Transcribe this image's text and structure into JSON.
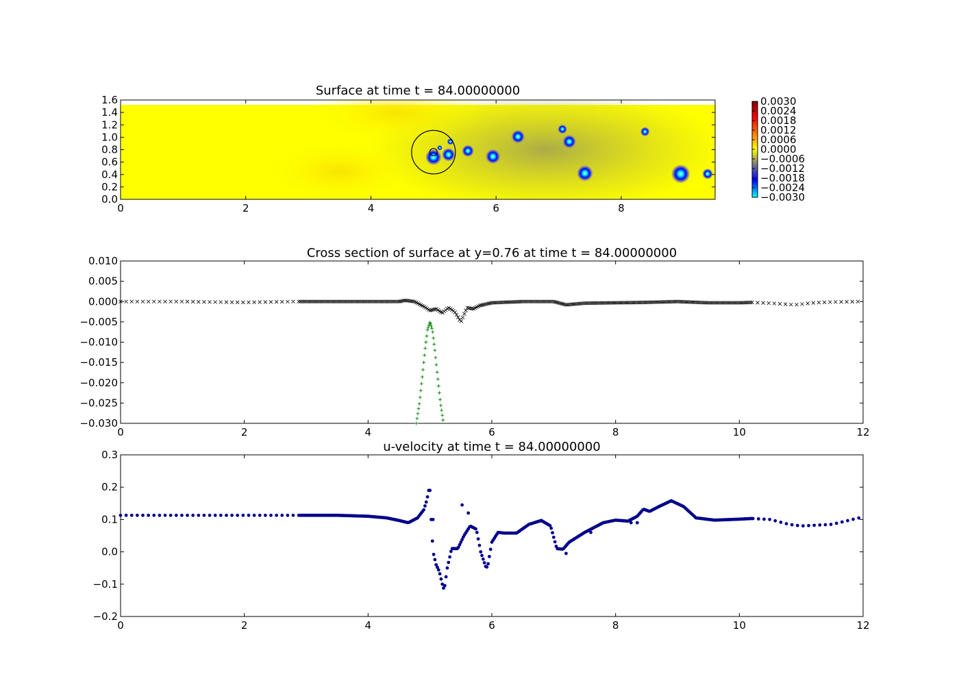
{
  "colors": {
    "surface_bg": "#ffff00",
    "cross_section_markers": "#000000",
    "bathymetry_markers": "#008000",
    "velocity_markers": "#00008b",
    "colormap": [
      "#00ffff",
      "#0000ff",
      "#808080",
      "#ffff00",
      "#ff8000",
      "#ff0000",
      "#800000"
    ]
  },
  "chart_data": [
    {
      "type": "heatmap",
      "title": "Surface at time t =    84.00000000",
      "xlabel": "",
      "ylabel": "",
      "xlim": [
        0,
        9.5
      ],
      "ylim": [
        0,
        1.6
      ],
      "x_ticks": [
        "0",
        "2",
        "4",
        "6",
        "8"
      ],
      "y_ticks": [
        "0.0",
        "0.2",
        "0.4",
        "0.6",
        "0.8",
        "1.0",
        "1.2",
        "1.4",
        "1.6"
      ],
      "colorbar": {
        "range": [
          -0.003,
          0.003
        ],
        "ticks": [
          "0.0030",
          "0.0024",
          "0.0018",
          "0.0012",
          "0.0006",
          "0.0000",
          "−0.0006",
          "−0.0012",
          "−0.0018",
          "−0.0024",
          "−0.0030"
        ]
      },
      "depressions": [
        {
          "x": 5.0,
          "y": 0.68,
          "r": 0.12
        },
        {
          "x": 5.24,
          "y": 0.72,
          "r": 0.1
        },
        {
          "x": 5.55,
          "y": 0.78,
          "r": 0.09
        },
        {
          "x": 5.95,
          "y": 0.69,
          "r": 0.11
        },
        {
          "x": 6.35,
          "y": 1.01,
          "r": 0.1
        },
        {
          "x": 7.06,
          "y": 1.13,
          "r": 0.07
        },
        {
          "x": 7.17,
          "y": 0.93,
          "r": 0.1
        },
        {
          "x": 7.42,
          "y": 0.42,
          "r": 0.12
        },
        {
          "x": 8.38,
          "y": 1.09,
          "r": 0.07
        },
        {
          "x": 8.95,
          "y": 0.41,
          "r": 0.14
        },
        {
          "x": 9.38,
          "y": 0.41,
          "r": 0.08
        },
        {
          "x": 5.27,
          "y": 0.93,
          "r": 0.05
        },
        {
          "x": 5.1,
          "y": 0.83,
          "r": 0.04
        }
      ],
      "circle": {
        "x": 5.0,
        "y": 0.76,
        "r": 0.35
      },
      "small_circle": {
        "x": 5.0,
        "y": 0.76,
        "r": 0.06
      }
    },
    {
      "type": "scatter",
      "title": "Cross section of surface at y=0.76 at time t =    84.00000000",
      "xlabel": "",
      "ylabel": "",
      "xlim": [
        0,
        12
      ],
      "ylim": [
        -0.03,
        0.01
      ],
      "x_ticks": [
        "0",
        "2",
        "4",
        "6",
        "8",
        "10",
        "12"
      ],
      "y_ticks": [
        "0.010",
        "0.005",
        "0.000",
        "−0.005",
        "−0.010",
        "−0.015",
        "−0.020",
        "−0.025",
        "−0.030"
      ],
      "series": [
        {
          "marker": "x",
          "x": [
            0.0,
            1.0,
            2.0,
            2.8,
            3.5,
            4.0,
            4.5,
            4.6,
            4.75,
            4.9,
            5.0,
            5.1,
            5.2,
            5.3,
            5.4,
            5.5,
            5.55,
            5.6,
            5.7,
            5.8,
            6.0,
            6.5,
            7.0,
            7.2,
            7.5,
            8.0,
            8.5,
            9.0,
            9.5,
            10.0,
            10.2,
            10.5,
            10.9,
            11.2,
            11.5,
            12.0
          ],
          "y": [
            0.0,
            0.0,
            -0.0002,
            0.0,
            0.0,
            0.0,
            0.0,
            0.0003,
            0.0,
            -0.0012,
            -0.0022,
            -0.0018,
            -0.0028,
            -0.0015,
            -0.0025,
            -0.005,
            -0.0032,
            -0.0015,
            -0.0018,
            -0.001,
            -0.0003,
            0.0,
            0.0,
            -0.0008,
            -0.0004,
            -0.0003,
            -0.0002,
            0.0,
            -0.0003,
            -0.0003,
            -0.0002,
            -0.0004,
            -0.0008,
            -0.0003,
            -0.0001,
            0.0
          ]
        },
        {
          "marker": "+",
          "x": [
            4.78,
            4.83,
            4.88,
            4.92,
            4.96,
            5.0,
            5.04,
            5.08,
            5.12,
            5.17,
            5.22
          ],
          "y": [
            -0.03,
            -0.025,
            -0.018,
            -0.012,
            -0.007,
            -0.005,
            -0.007,
            -0.012,
            -0.018,
            -0.025,
            -0.03
          ]
        }
      ]
    },
    {
      "type": "scatter",
      "title": "u-velocity at time t =    84.00000000",
      "xlabel": "",
      "ylabel": "",
      "xlim": [
        0,
        12
      ],
      "ylim": [
        -0.2,
        0.3
      ],
      "x_ticks": [
        "0",
        "2",
        "4",
        "6",
        "8",
        "10",
        "12"
      ],
      "y_ticks": [
        "0.3",
        "0.2",
        "0.1",
        "0.0",
        "−0.1",
        "−0.2"
      ],
      "series": [
        {
          "marker": "o",
          "x": [
            0.0,
            1.0,
            2.0,
            2.8,
            3.5,
            4.0,
            4.3,
            4.5,
            4.65,
            4.8,
            4.9,
            4.95,
            4.98,
            5.0,
            5.02,
            5.05,
            5.1,
            5.15,
            5.2,
            5.23,
            5.28,
            5.35,
            5.45,
            5.55,
            5.65,
            5.75,
            5.82,
            5.9,
            5.93,
            6.0,
            6.1,
            6.2,
            6.4,
            6.6,
            6.8,
            6.95,
            7.05,
            7.15,
            7.25,
            7.5,
            7.8,
            8.0,
            8.2,
            8.35,
            8.45,
            8.55,
            8.7,
            8.9,
            9.1,
            9.3,
            9.6,
            10.0,
            10.2,
            10.5,
            10.8,
            11.0,
            11.5,
            12.0
          ],
          "y": [
            0.113,
            0.113,
            0.113,
            0.113,
            0.113,
            0.11,
            0.105,
            0.097,
            0.09,
            0.105,
            0.13,
            0.16,
            0.19,
            0.19,
            0.1,
            0.0,
            -0.04,
            -0.06,
            -0.1,
            -0.118,
            -0.05,
            0.01,
            0.01,
            0.05,
            0.08,
            0.07,
            0.0,
            -0.045,
            -0.048,
            0.03,
            0.06,
            0.058,
            0.058,
            0.085,
            0.097,
            0.08,
            0.01,
            0.008,
            0.03,
            0.06,
            0.09,
            0.098,
            0.095,
            0.11,
            0.132,
            0.125,
            0.14,
            0.158,
            0.14,
            0.105,
            0.098,
            0.101,
            0.103,
            0.1,
            0.085,
            0.08,
            0.085,
            0.108
          ]
        }
      ]
    }
  ]
}
